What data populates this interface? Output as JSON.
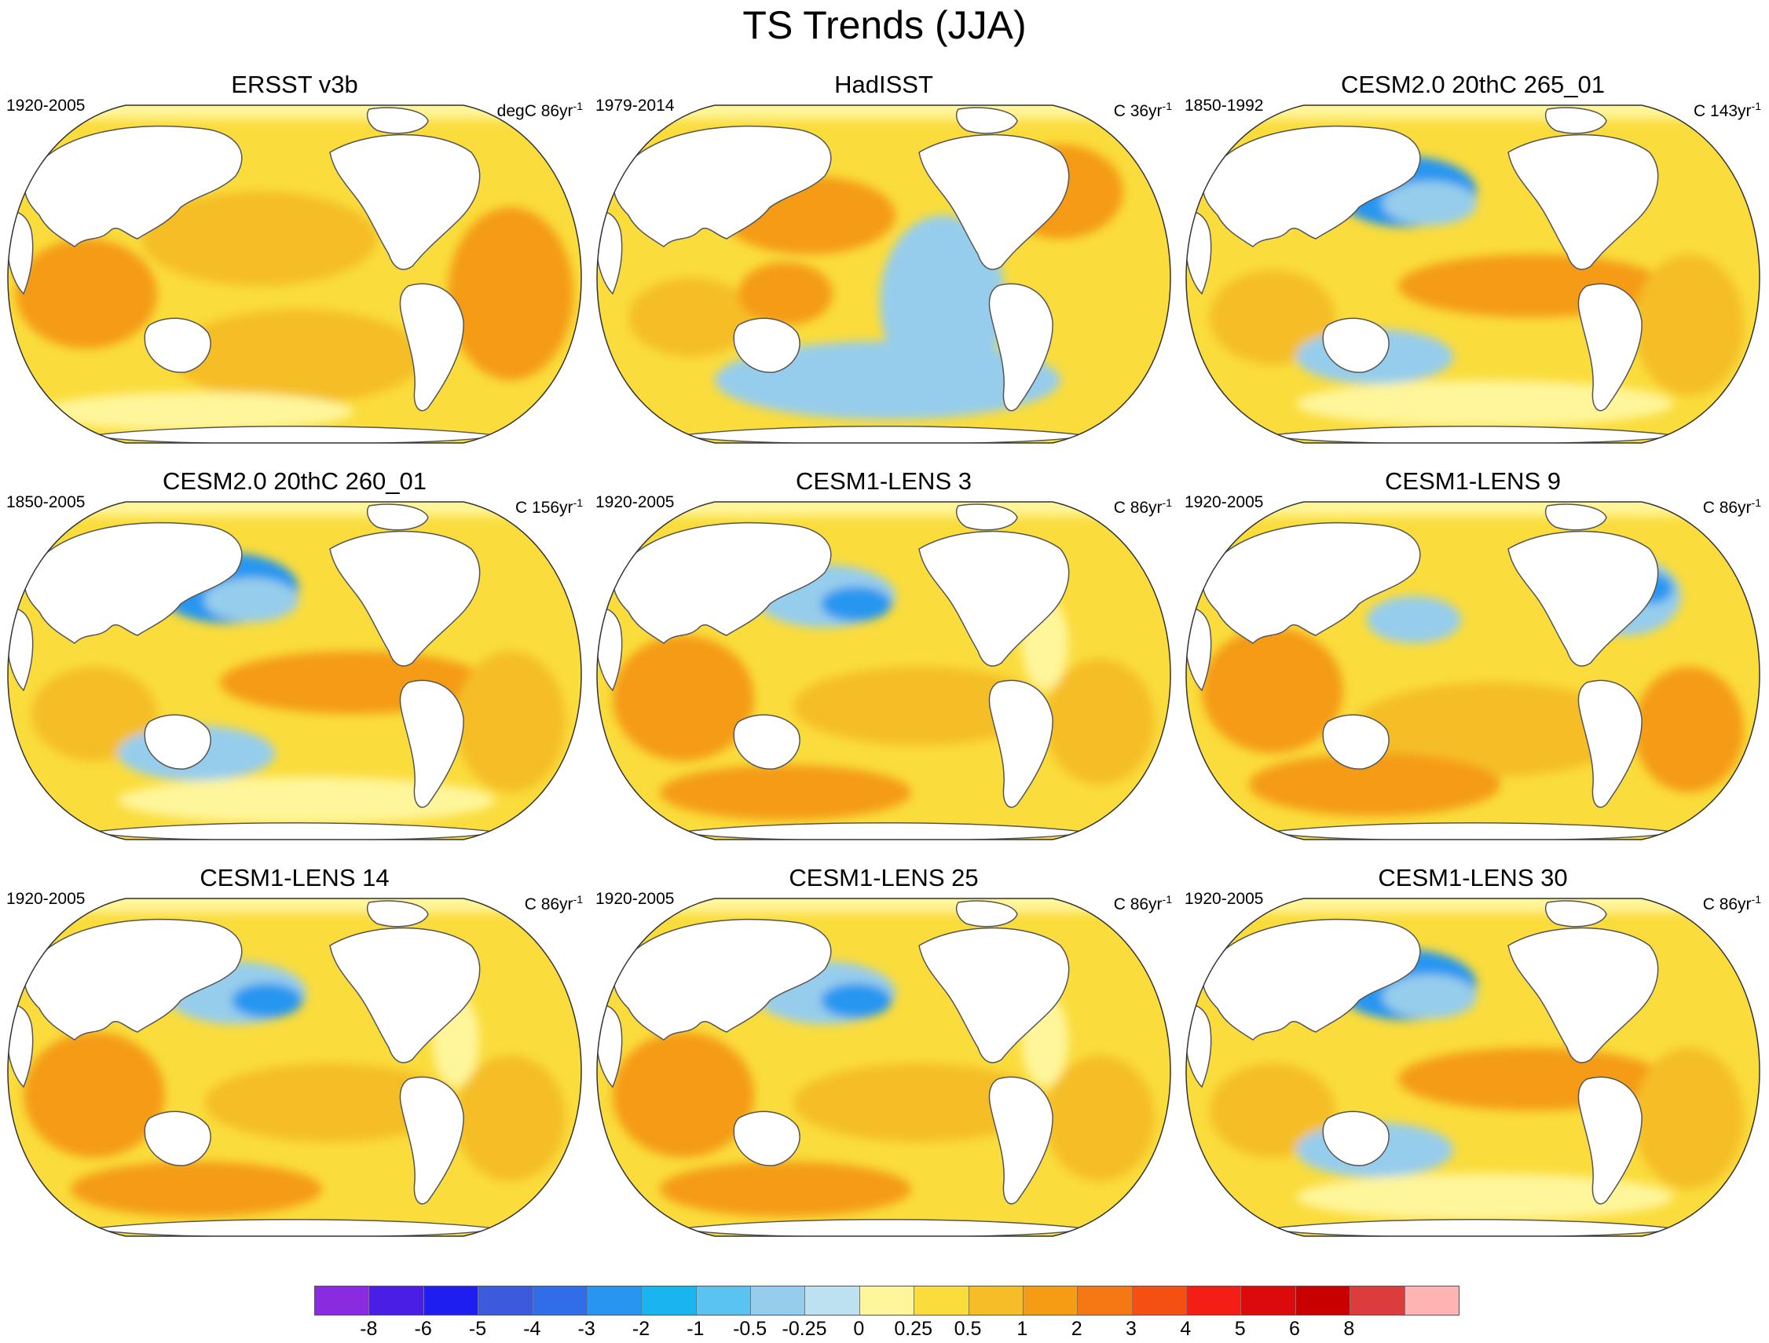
{
  "figure": {
    "title": "TS Trends (JJA)"
  },
  "panels": [
    {
      "title": "ERSST v3b",
      "period": "1920-2005",
      "units_prefix": "degC 86yr",
      "units_exp": "-1",
      "pattern": "warm"
    },
    {
      "title": "HadISST",
      "period": "1979-2014",
      "units_prefix": "C 36yr",
      "units_exp": "-1",
      "pattern": "mixed"
    },
    {
      "title": "CESM2.0 20thC 265_01",
      "period": "1850-1992",
      "units_prefix": "C 143yr",
      "units_exp": "-1",
      "pattern": "npac_cold"
    },
    {
      "title": "CESM2.0 20thC 260_01",
      "period": "1850-2005",
      "units_prefix": "C 156yr",
      "units_exp": "-1",
      "pattern": "npac_cold"
    },
    {
      "title": "CESM1-LENS 3",
      "period": "1920-2005",
      "units_prefix": "C 86yr",
      "units_exp": "-1",
      "pattern": "npac_cold_mild"
    },
    {
      "title": "CESM1-LENS 9",
      "period": "1920-2005",
      "units_prefix": "C 86yr",
      "units_exp": "-1",
      "pattern": "natl_cold"
    },
    {
      "title": "CESM1-LENS 14",
      "period": "1920-2005",
      "units_prefix": "C 86yr",
      "units_exp": "-1",
      "pattern": "npac_cold_mild"
    },
    {
      "title": "CESM1-LENS 25",
      "period": "1920-2005",
      "units_prefix": "C 86yr",
      "units_exp": "-1",
      "pattern": "npac_cold_mild"
    },
    {
      "title": "CESM1-LENS 30",
      "period": "1920-2005",
      "units_prefix": "C 86yr",
      "units_exp": "-1",
      "pattern": "npac_cold"
    }
  ],
  "colorbar": {
    "colors": [
      "#8a2be2",
      "#4b1ee6",
      "#1e1ef0",
      "#3c5adc",
      "#2f6ee8",
      "#2896f0",
      "#1ab4f0",
      "#5ac3f0",
      "#96cdec",
      "#bee1f2",
      "#fff59a",
      "#fadc3c",
      "#f5be28",
      "#f59b14",
      "#f57814",
      "#f55014",
      "#f51e14",
      "#dc0a0a",
      "#c80000",
      "#dc3c3c",
      "#ffb4b4"
    ],
    "labels": [
      "-8",
      "-6",
      "-5",
      "-4",
      "-3",
      "-2",
      "-1",
      "-0.5",
      "-0.25",
      "0",
      "0.25",
      "0.5",
      "1",
      "2",
      "3",
      "4",
      "5",
      "6",
      "8"
    ]
  },
  "legend_colors": {
    "ocean_base": "#fadc3c",
    "warm": "#f5be28",
    "warmer": "#f59b14",
    "cool": "#96cdec",
    "cooler": "#2896f0",
    "near_zero": "#fff59a",
    "land": "#ffffff",
    "coastline": "#555555"
  }
}
